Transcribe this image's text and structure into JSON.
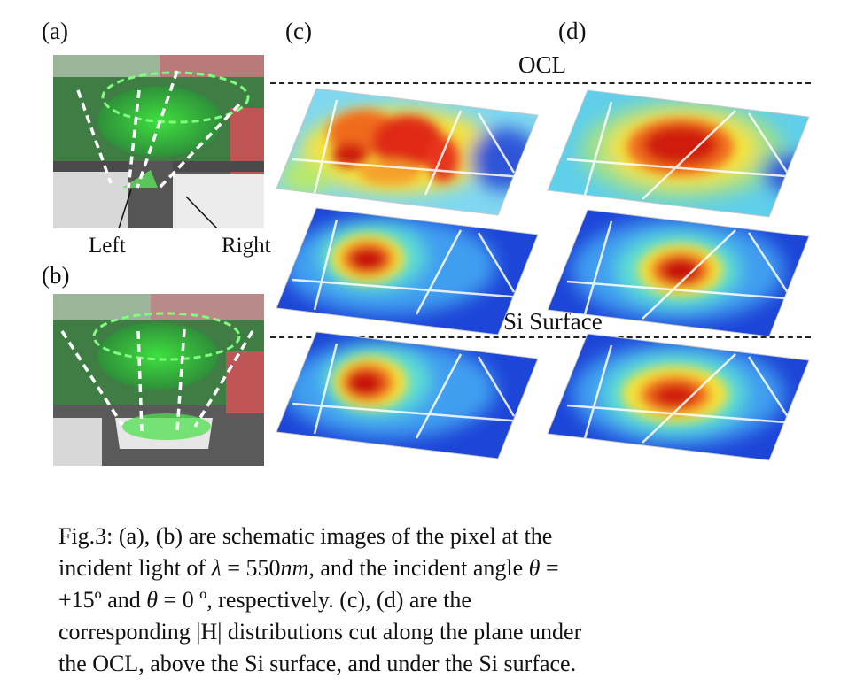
{
  "panel_labels": {
    "a": "(a)",
    "b": "(b)",
    "c": "(c)",
    "d": "(d)"
  },
  "annotations": {
    "left": "Left",
    "right": "Right",
    "ocl": "OCL",
    "si_surface": "Si Surface"
  },
  "caption": {
    "line1": "Fig.3: (a), (b) are schematic images of the pixel at the",
    "line2_pre": "incident light of ",
    "line2_lambda": "λ",
    "line2_mid": " = 550",
    "line2_unit": "nm",
    "line2_mid2": ", and the incident angle ",
    "line2_theta": "θ",
    "line2_post": " =",
    "line3_pre": "+15º and ",
    "line3_theta": "θ",
    "line3_post": " = 0 º, respectively. (c), (d) are the",
    "line4": "corresponding |H| distributions cut along the plane under",
    "line5": "the OCL, above the Si surface, and under the Si surface."
  },
  "colors": {
    "jet_low": "#1a3fd6",
    "jet_mid": "#46d8e6",
    "jet_high": "#cc1010",
    "green_beam": "#35d835"
  }
}
